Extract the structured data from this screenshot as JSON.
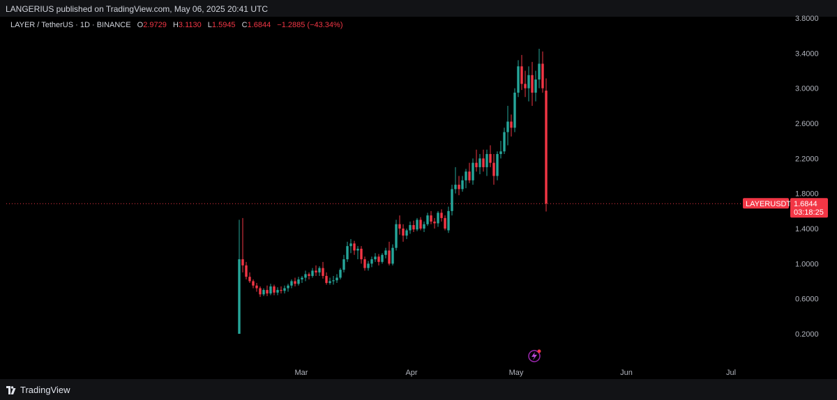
{
  "header": {
    "publish_text": "LANGERIUS published on TradingView.com, May 06, 2025 20:41 UTC"
  },
  "legend": {
    "symbol": "LAYER / TetherUS · 1D · BINANCE",
    "o_label": "O",
    "o_value": "2.9729",
    "h_label": "H",
    "h_value": "3.1130",
    "l_label": "L",
    "l_value": "1.5945",
    "c_label": "C",
    "c_value": "1.6844",
    "change": "−1.2885 (−43.34%)"
  },
  "price_tag": {
    "symbol": "LAYERUSDT",
    "price": "1.6844",
    "countdown": "03:18:25"
  },
  "footer": {
    "logo_text": "TradingView"
  },
  "colors": {
    "up": "#26a69a",
    "down": "#f23645",
    "axis_text": "#b2b5be",
    "background": "#000000"
  },
  "icons": {
    "flash": "lightning-icon",
    "logo": "tradingview-logo-icon"
  },
  "chart_data": {
    "type": "candlestick",
    "y_scale": "linear",
    "y_ticks": [
      "3.8000",
      "3.4000",
      "3.0000",
      "2.6000",
      "2.2000",
      "1.8000",
      "1.4000",
      "1.0000",
      "0.6000",
      "0.2000"
    ],
    "x_ticks": [
      "Mar",
      "Apr",
      "May",
      "Jun",
      "Jul"
    ],
    "ylim": [
      0.0,
      3.8
    ],
    "last_price": 1.6844,
    "candles": [
      [
        0.2,
        1.5,
        0.2,
        1.05
      ],
      [
        1.05,
        1.52,
        0.9,
        0.98
      ],
      [
        0.98,
        1.02,
        0.82,
        0.85
      ],
      [
        0.85,
        0.9,
        0.78,
        0.8
      ],
      [
        0.8,
        0.82,
        0.72,
        0.75
      ],
      [
        0.75,
        0.78,
        0.68,
        0.72
      ],
      [
        0.72,
        0.74,
        0.62,
        0.65
      ],
      [
        0.65,
        0.72,
        0.63,
        0.7
      ],
      [
        0.7,
        0.75,
        0.63,
        0.66
      ],
      [
        0.66,
        0.77,
        0.64,
        0.74
      ],
      [
        0.74,
        0.76,
        0.64,
        0.67
      ],
      [
        0.67,
        0.73,
        0.64,
        0.7
      ],
      [
        0.7,
        0.74,
        0.66,
        0.69
      ],
      [
        0.69,
        0.75,
        0.66,
        0.72
      ],
      [
        0.72,
        0.77,
        0.68,
        0.75
      ],
      [
        0.75,
        0.82,
        0.72,
        0.8
      ],
      [
        0.8,
        0.84,
        0.74,
        0.77
      ],
      [
        0.77,
        0.85,
        0.75,
        0.82
      ],
      [
        0.82,
        0.86,
        0.78,
        0.84
      ],
      [
        0.84,
        0.92,
        0.8,
        0.88
      ],
      [
        0.88,
        0.9,
        0.82,
        0.86
      ],
      [
        0.86,
        0.95,
        0.84,
        0.92
      ],
      [
        0.92,
        0.98,
        0.86,
        0.9
      ],
      [
        0.9,
        0.97,
        0.86,
        0.95
      ],
      [
        0.95,
        1.02,
        0.83,
        0.86
      ],
      [
        0.86,
        0.9,
        0.76,
        0.78
      ],
      [
        0.78,
        0.84,
        0.76,
        0.8
      ],
      [
        0.8,
        0.86,
        0.76,
        0.81
      ],
      [
        0.81,
        0.88,
        0.78,
        0.84
      ],
      [
        0.84,
        0.95,
        0.82,
        0.93
      ],
      [
        0.93,
        1.1,
        0.9,
        1.05
      ],
      [
        1.05,
        1.25,
        1.02,
        1.2
      ],
      [
        1.2,
        1.28,
        1.12,
        1.23
      ],
      [
        1.23,
        1.26,
        1.1,
        1.15
      ],
      [
        1.15,
        1.2,
        1.05,
        1.17
      ],
      [
        1.17,
        1.2,
        1.0,
        1.05
      ],
      [
        1.05,
        1.08,
        0.92,
        0.95
      ],
      [
        0.95,
        1.03,
        0.92,
        1.0
      ],
      [
        1.0,
        1.08,
        0.96,
        1.05
      ],
      [
        1.05,
        1.12,
        1.02,
        1.08
      ],
      [
        1.08,
        1.11,
        0.98,
        1.02
      ],
      [
        1.02,
        1.12,
        1.0,
        1.1
      ],
      [
        1.1,
        1.18,
        1.06,
        1.15
      ],
      [
        1.15,
        1.25,
        0.98,
        1.0
      ],
      [
        1.0,
        1.22,
        0.98,
        1.18
      ],
      [
        1.18,
        1.5,
        1.15,
        1.45
      ],
      [
        1.45,
        1.55,
        1.33,
        1.4
      ],
      [
        1.4,
        1.45,
        1.25,
        1.32
      ],
      [
        1.32,
        1.4,
        1.28,
        1.38
      ],
      [
        1.38,
        1.48,
        1.34,
        1.44
      ],
      [
        1.44,
        1.49,
        1.36,
        1.39
      ],
      [
        1.39,
        1.52,
        1.37,
        1.5
      ],
      [
        1.5,
        1.53,
        1.38,
        1.4
      ],
      [
        1.4,
        1.48,
        1.36,
        1.45
      ],
      [
        1.45,
        1.58,
        1.43,
        1.55
      ],
      [
        1.55,
        1.6,
        1.45,
        1.48
      ],
      [
        1.48,
        1.52,
        1.4,
        1.46
      ],
      [
        1.46,
        1.6,
        1.42,
        1.58
      ],
      [
        1.58,
        1.62,
        1.48,
        1.52
      ],
      [
        1.52,
        1.55,
        1.38,
        1.4
      ],
      [
        1.38,
        1.65,
        1.35,
        1.6
      ],
      [
        1.6,
        1.9,
        1.55,
        1.85
      ],
      [
        1.85,
        2.1,
        1.8,
        1.9
      ],
      [
        1.9,
        2.0,
        1.78,
        1.85
      ],
      [
        1.85,
        2.0,
        1.82,
        1.95
      ],
      [
        1.95,
        2.08,
        1.86,
        2.05
      ],
      [
        2.05,
        2.15,
        1.92,
        1.95
      ],
      [
        1.95,
        2.2,
        1.9,
        2.15
      ],
      [
        2.15,
        2.3,
        2.05,
        2.1
      ],
      [
        2.1,
        2.25,
        2.02,
        2.2
      ],
      [
        2.2,
        2.3,
        2.05,
        2.1
      ],
      [
        2.1,
        2.3,
        2.0,
        2.25
      ],
      [
        2.25,
        2.35,
        2.1,
        2.15
      ],
      [
        2.15,
        2.25,
        1.9,
        2.0
      ],
      [
        2.0,
        2.28,
        1.95,
        2.25
      ],
      [
        2.25,
        2.4,
        2.2,
        2.28
      ],
      [
        2.28,
        2.55,
        2.25,
        2.5
      ],
      [
        2.5,
        2.8,
        2.35,
        2.62
      ],
      [
        2.62,
        2.7,
        2.45,
        2.55
      ],
      [
        2.55,
        3.0,
        2.5,
        2.95
      ],
      [
        2.95,
        3.32,
        2.9,
        3.25
      ],
      [
        3.25,
        3.38,
        2.98,
        3.05
      ],
      [
        3.05,
        3.2,
        2.9,
        3.0
      ],
      [
        3.0,
        3.25,
        2.85,
        3.15
      ],
      [
        3.15,
        3.3,
        2.8,
        2.95
      ],
      [
        2.95,
        3.2,
        2.85,
        3.1
      ],
      [
        3.1,
        3.45,
        3.0,
        3.28
      ],
      [
        3.28,
        3.42,
        2.95,
        3.0
      ],
      [
        2.9729,
        3.113,
        1.5945,
        1.6844
      ]
    ]
  }
}
